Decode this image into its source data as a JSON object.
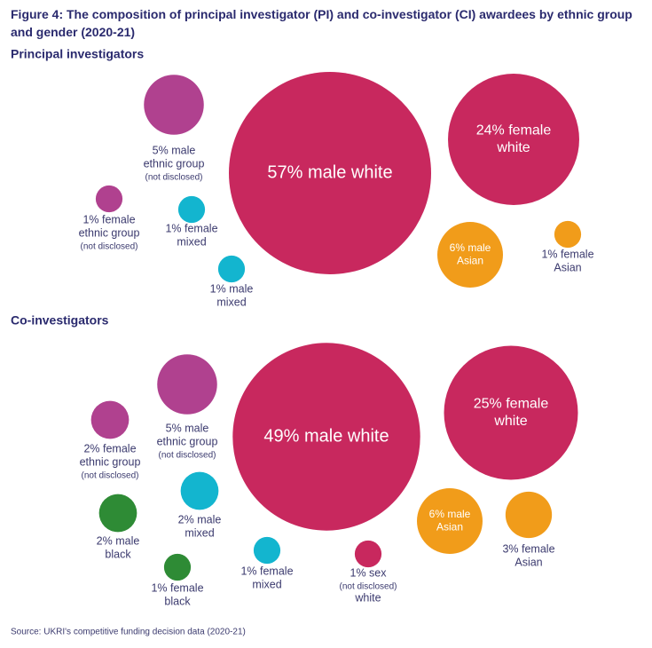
{
  "title": "Figure 4: The composition of principal investigator (PI) and co-investigator (CI) awardees by ethnic group and gender (2020-21)",
  "source": "Source: UKRI's competitive funding decision data (2020-21)",
  "chart_data": [
    {
      "type": "bubble",
      "title": "Principal investigators",
      "values": [
        57,
        24,
        5,
        6,
        1,
        1,
        1,
        1
      ],
      "value_labels": [
        [
          "57% male white"
        ],
        [
          "24% female",
          "white"
        ],
        [
          "5% male",
          "ethnic group",
          "(not disclosed)"
        ],
        [
          "6% male",
          "Asian"
        ],
        [
          "1% female",
          "Asian"
        ],
        [
          "1% female",
          "ethnic group",
          "(not disclosed)"
        ],
        [
          "1% female",
          "mixed"
        ],
        [
          "1% male",
          "mixed"
        ]
      ],
      "colors": [
        "#c8285e",
        "#c8285e",
        "#b0418f",
        "#f19c1a",
        "#f19c1a",
        "#b0418f",
        "#13b5cf",
        "#13b5cf"
      ]
    },
    {
      "type": "bubble",
      "title": "Co-investigators",
      "values": [
        49,
        25,
        5,
        6,
        3,
        2,
        2,
        2,
        1,
        1,
        1
      ],
      "value_labels": [
        [
          "49% male white"
        ],
        [
          "25% female",
          "white"
        ],
        [
          "5% male",
          "ethnic group",
          "(not disclosed)"
        ],
        [
          "6% male",
          "Asian"
        ],
        [
          "3% female",
          "Asian"
        ],
        [
          "2% female",
          "ethnic group",
          "(not disclosed)"
        ],
        [
          "2% male",
          "mixed"
        ],
        [
          "2% male",
          "black"
        ],
        [
          "1% female",
          "black"
        ],
        [
          "1% female",
          "mixed"
        ],
        [
          "1% sex",
          "(not disclosed)",
          "white"
        ]
      ],
      "colors": [
        "#c8285e",
        "#c8285e",
        "#b0418f",
        "#f19c1a",
        "#f19c1a",
        "#b0418f",
        "#13b5cf",
        "#2e8b35",
        "#2e8b35",
        "#13b5cf",
        "#c8285e"
      ]
    }
  ]
}
